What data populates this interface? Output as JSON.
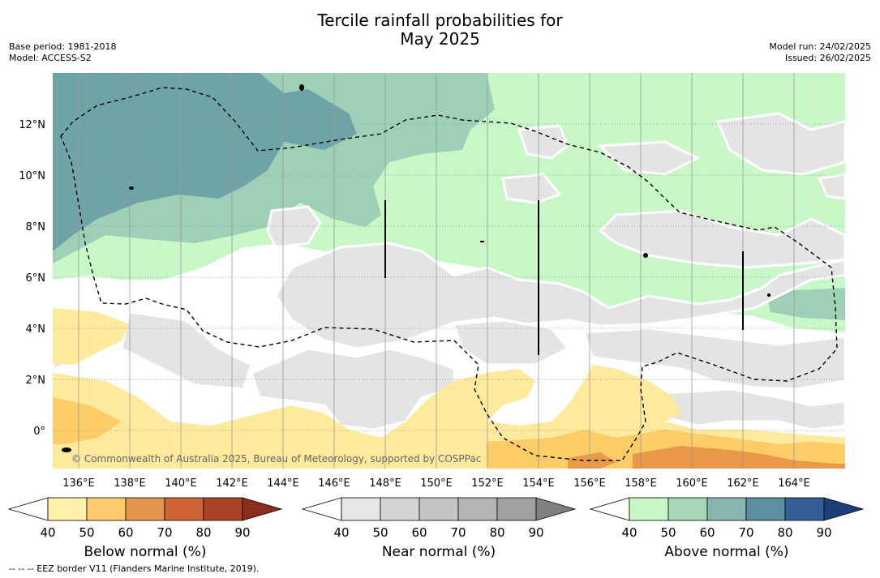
{
  "title_line1": "Tercile rainfall probabilities for",
  "title_line2": "May 2025",
  "meta_left": [
    "Base period: 1981-2018",
    "Model: ACCESS-S2"
  ],
  "meta_right": [
    "Model run: 24/02/2025",
    "Issued: 26/02/2025"
  ],
  "map": {
    "lat_labels": [
      "12°N",
      "10°N",
      "8°N",
      "6°N",
      "4°N",
      "2°N",
      "0°"
    ],
    "lon_labels": [
      "136°E",
      "138°E",
      "140°E",
      "142°E",
      "144°E",
      "146°E",
      "148°E",
      "150°E",
      "152°E",
      "154°E",
      "156°E",
      "158°E",
      "160°E",
      "162°E",
      "164°E"
    ],
    "copyright": "© Commonwealth of Australia 2025, Bureau of Meteorology, supported by COSPPac",
    "colors": {
      "above_strong": "#6ea4a6",
      "above_mid": "#9ed0b7",
      "above_light": "#c8f8c8",
      "near": "#e4e4e4",
      "below_light": "#fee99c",
      "below_mid": "#fccc66",
      "below_strong": "#e89a48",
      "eez": "#000000"
    }
  },
  "colorbars": [
    {
      "label": "Below normal (%)",
      "ticks": [
        "40",
        "50",
        "60",
        "70",
        "80",
        "90"
      ],
      "colors": [
        "#ffffff",
        "#fff1a8",
        "#fdcb6e",
        "#e2954c",
        "#cf6535",
        "#ad4326",
        "#8a2e1d"
      ]
    },
    {
      "label": "Near normal (%)",
      "ticks": [
        "40",
        "50",
        "60",
        "70",
        "80",
        "90"
      ],
      "colors": [
        "#ffffff",
        "#e6e6e6",
        "#d4d4d4",
        "#c4c4c4",
        "#b3b3b3",
        "#a0a0a0",
        "#808080"
      ]
    },
    {
      "label": "Above normal (%)",
      "ticks": [
        "40",
        "50",
        "60",
        "70",
        "80",
        "90"
      ],
      "colors": [
        "#ffffff",
        "#c8f8c8",
        "#a6d8b8",
        "#85b6b0",
        "#5a8ea0",
        "#335f96",
        "#1c3f7a"
      ]
    }
  ],
  "footnote": "--  --  -- EEZ border V11 (Flanders Marine Institute, 2019)."
}
